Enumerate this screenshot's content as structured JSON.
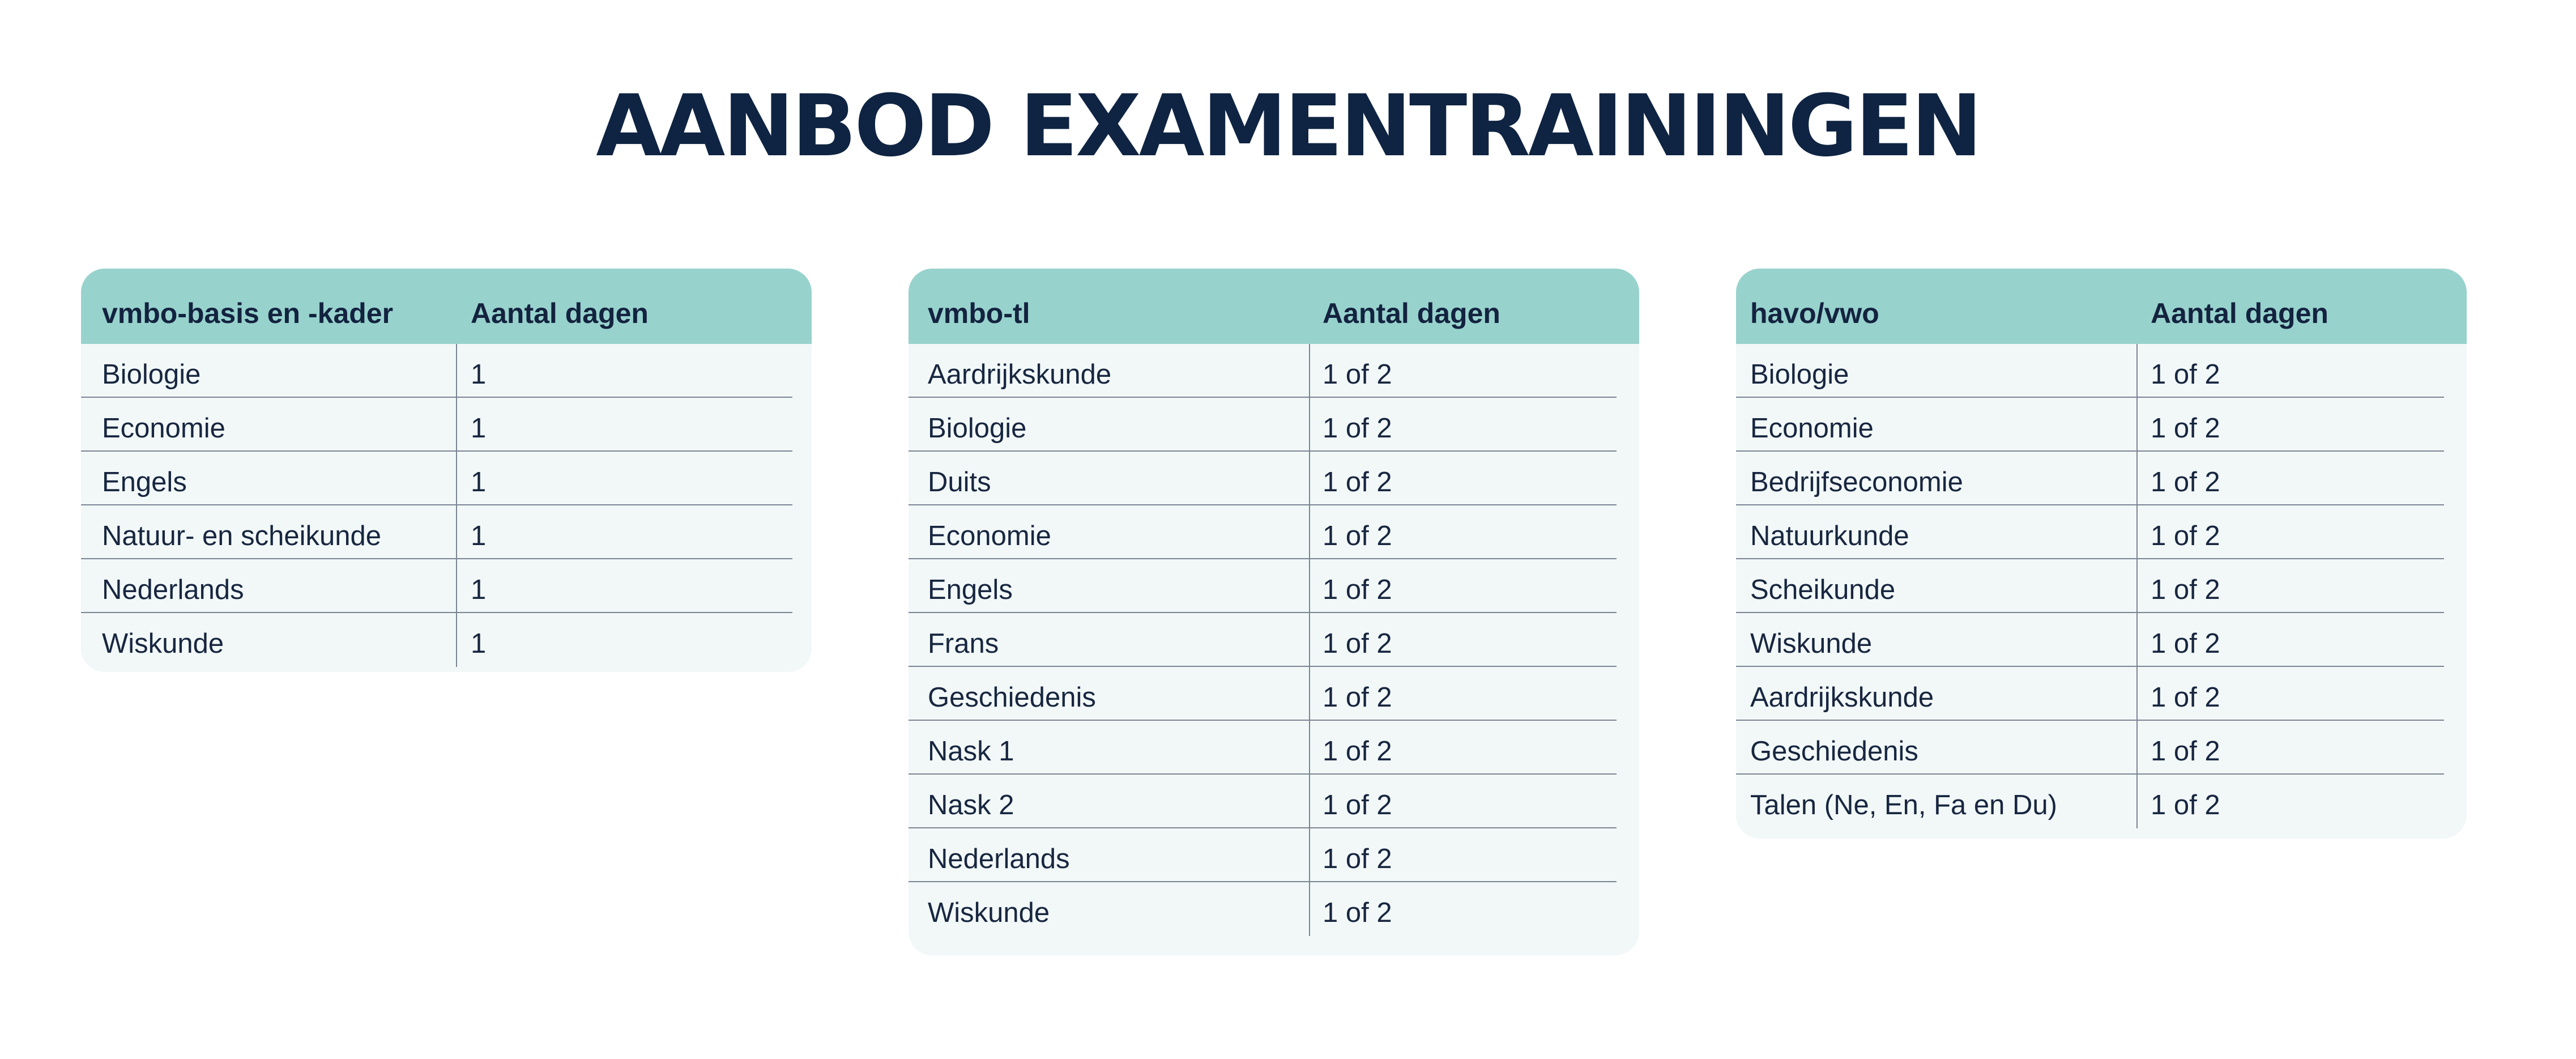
{
  "page": {
    "title": "AANBOD EXAMENTRAININGEN"
  },
  "tables": [
    {
      "headers": [
        "vmbo-basis en -kader",
        "Aantal dagen"
      ],
      "rows": [
        [
          "Biologie",
          "1"
        ],
        [
          "Economie",
          "1"
        ],
        [
          "Engels",
          "1"
        ],
        [
          "Natuur- en scheikunde",
          "1"
        ],
        [
          "Nederlands",
          "1"
        ],
        [
          "Wiskunde",
          "1"
        ]
      ]
    },
    {
      "headers": [
        "vmbo-tl",
        "Aantal dagen"
      ],
      "rows": [
        [
          "Aardrijkskunde",
          "1 of 2"
        ],
        [
          "Biologie",
          "1 of 2"
        ],
        [
          "Duits",
          "1 of 2"
        ],
        [
          "Economie",
          "1 of 2"
        ],
        [
          "Engels",
          "1 of 2"
        ],
        [
          "Frans",
          "1 of 2"
        ],
        [
          "Geschiedenis",
          "1 of 2"
        ],
        [
          "Nask 1",
          "1 of 2"
        ],
        [
          "Nask 2",
          "1 of 2"
        ],
        [
          "Nederlands",
          "1 of 2"
        ],
        [
          "Wiskunde",
          "1 of 2"
        ]
      ]
    },
    {
      "headers": [
        "havo/vwo",
        "Aantal dagen"
      ],
      "rows": [
        [
          "Biologie",
          "1 of 2"
        ],
        [
          "Economie",
          "1 of 2"
        ],
        [
          "Bedrijfseconomie",
          "1 of 2"
        ],
        [
          "Natuurkunde",
          "1 of 2"
        ],
        [
          "Scheikunde",
          "1 of 2"
        ],
        [
          "Wiskunde",
          "1 of 2"
        ],
        [
          "Aardrijkskunde",
          "1 of 2"
        ],
        [
          "Geschiedenis",
          "1 of 2"
        ],
        [
          "Talen (Ne, En, Fa en Du)",
          "1 of 2"
        ]
      ]
    }
  ],
  "colors": {
    "title": "#0f2442",
    "header_bg": "#98d2cd",
    "card_bg": "#f1f8f7",
    "divider": "#7b8494"
  }
}
